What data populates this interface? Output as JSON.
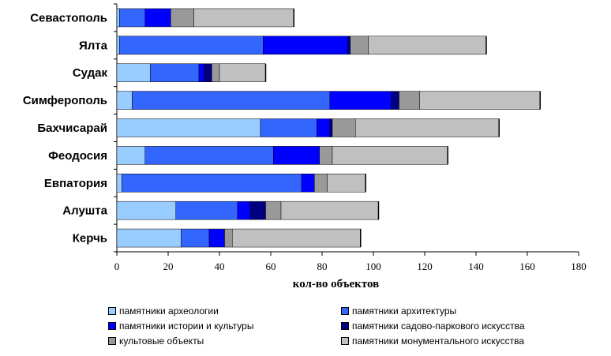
{
  "chart_data": {
    "type": "bar",
    "orientation": "horizontal",
    "stacked": true,
    "categories": [
      "Севастополь",
      "Ялта",
      "Судак",
      "Симферополь",
      "Бахчисарай",
      "Феодосия",
      "Евпатория",
      "Алушта",
      "Керчь"
    ],
    "series": [
      {
        "name": "памятники археологии",
        "color": "#99ccff",
        "values": [
          1,
          1,
          13,
          6,
          56,
          11,
          2,
          23,
          25
        ]
      },
      {
        "name": "памятники архитектуры",
        "color": "#3366ff",
        "values": [
          10,
          56,
          19,
          77,
          22,
          50,
          70,
          24,
          11
        ]
      },
      {
        "name": "памятники истории и культуры",
        "color": "#0000ff",
        "values": [
          10,
          33,
          2,
          24,
          5,
          18,
          5,
          5,
          6
        ]
      },
      {
        "name": "памятники садово-паркового искусства",
        "color": "#000080",
        "values": [
          0,
          1,
          3,
          3,
          1,
          0,
          0,
          6,
          0
        ]
      },
      {
        "name": "культовые объекты",
        "color": "#999999",
        "values": [
          9,
          7,
          3,
          8,
          9,
          5,
          5,
          6,
          3
        ]
      },
      {
        "name": "памятники монументального искусства",
        "color": "#c0c0c0",
        "values": [
          39,
          46,
          18,
          47,
          56,
          45,
          15,
          38,
          50
        ]
      }
    ],
    "xlabel": "кол-во объектов",
    "ylabel": "",
    "xlim": [
      0,
      180
    ],
    "xticks": [
      "0",
      "20",
      "40",
      "60",
      "80",
      "100",
      "120",
      "140",
      "160",
      "180"
    ],
    "grid": false,
    "legend_position": "bottom"
  }
}
